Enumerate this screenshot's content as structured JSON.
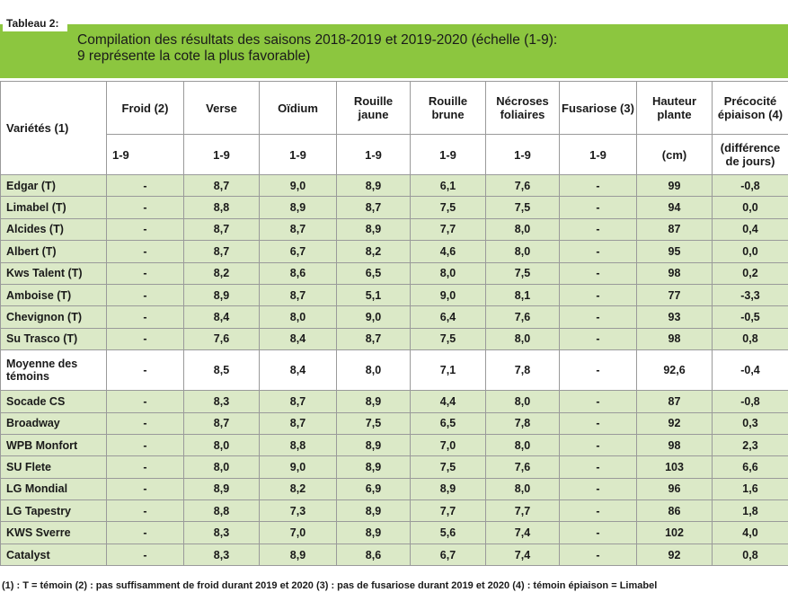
{
  "table_label": "Tableau 2:",
  "title_line1": "Compilation des résultats des saisons 2018-2019 et 2019-2020 (échelle (1-9):",
  "title_line2": "9 représente la cote la plus favorable)",
  "colors": {
    "title_bar": "#8cc63f",
    "row_band": "#dbe9c7"
  },
  "headers": [
    "Variétés (1)",
    "Froid (2)",
    "Verse",
    "Oïdium",
    "Rouille jaune",
    "Rouille brune",
    "Nécroses foliaires",
    "Fusariose (3)",
    "Hauteur plante",
    "Précocité épiaison (4)"
  ],
  "units": [
    "1-9",
    "1-9",
    "1-9",
    "1-9",
    "1-9",
    "1-9",
    "1-9",
    "(cm)",
    "(différence de jours)"
  ],
  "rows": [
    [
      "Edgar (T)",
      "-",
      "8,7",
      "9,0",
      "8,9",
      "6,1",
      "7,6",
      "-",
      "99",
      "-0,8"
    ],
    [
      "Limabel (T)",
      "-",
      "8,8",
      "8,9",
      "8,7",
      "7,5",
      "7,5",
      "-",
      "94",
      "0,0"
    ],
    [
      "Alcides (T)",
      "-",
      "8,7",
      "8,7",
      "8,9",
      "7,7",
      "8,0",
      "-",
      "87",
      "0,4"
    ],
    [
      "Albert (T)",
      "-",
      "8,7",
      "6,7",
      "8,2",
      "4,6",
      "8,0",
      "-",
      "95",
      "0,0"
    ],
    [
      "Kws Talent (T)",
      "-",
      "8,2",
      "8,6",
      "6,5",
      "8,0",
      "7,5",
      "-",
      "98",
      "0,2"
    ],
    [
      "Amboise (T)",
      "-",
      "8,9",
      "8,7",
      "5,1",
      "9,0",
      "8,1",
      "-",
      "77",
      "-3,3"
    ],
    [
      "Chevignon (T)",
      "-",
      "8,4",
      "8,0",
      "9,0",
      "6,4",
      "7,6",
      "-",
      "93",
      "-0,5"
    ],
    [
      "Su Trasco (T)",
      "-",
      "7,6",
      "8,4",
      "8,7",
      "7,5",
      "8,0",
      "-",
      "98",
      "0,8"
    ],
    [
      "Moyenne des témoins",
      "-",
      "8,5",
      "8,4",
      "8,0",
      "7,1",
      "7,8",
      "-",
      "92,6",
      "-0,4"
    ],
    [
      "Socade CS",
      "-",
      "8,3",
      "8,7",
      "8,9",
      "4,4",
      "8,0",
      "-",
      "87",
      "-0,8"
    ],
    [
      "Broadway",
      "-",
      "8,7",
      "8,7",
      "7,5",
      "6,5",
      "7,8",
      "-",
      "92",
      "0,3"
    ],
    [
      "WPB Monfort",
      "-",
      "8,0",
      "8,8",
      "8,9",
      "7,0",
      "8,0",
      "-",
      "98",
      "2,3"
    ],
    [
      "SU Flete",
      "-",
      "8,0",
      "9,0",
      "8,9",
      "7,5",
      "7,6",
      "-",
      "103",
      "6,6"
    ],
    [
      "LG Mondial",
      "-",
      "8,9",
      "8,2",
      "6,9",
      "8,9",
      "8,0",
      "-",
      "96",
      "1,6"
    ],
    [
      "LG Tapestry",
      "-",
      "8,8",
      "7,3",
      "8,9",
      "7,7",
      "7,7",
      "-",
      "86",
      "1,8"
    ],
    [
      "KWS Sverre",
      "-",
      "8,3",
      "7,0",
      "8,9",
      "5,6",
      "7,4",
      "-",
      "102",
      "4,0"
    ],
    [
      "Catalyst",
      "-",
      "8,3",
      "8,9",
      "8,6",
      "6,7",
      "7,4",
      "-",
      "92",
      "0,8"
    ]
  ],
  "footer": "(1) : T = témoin  (2) : pas suffisamment de froid durant 2019 et 2020  (3) : pas de fusariose durant 2019 et 2020  (4) : témoin épiaison = Limabel"
}
